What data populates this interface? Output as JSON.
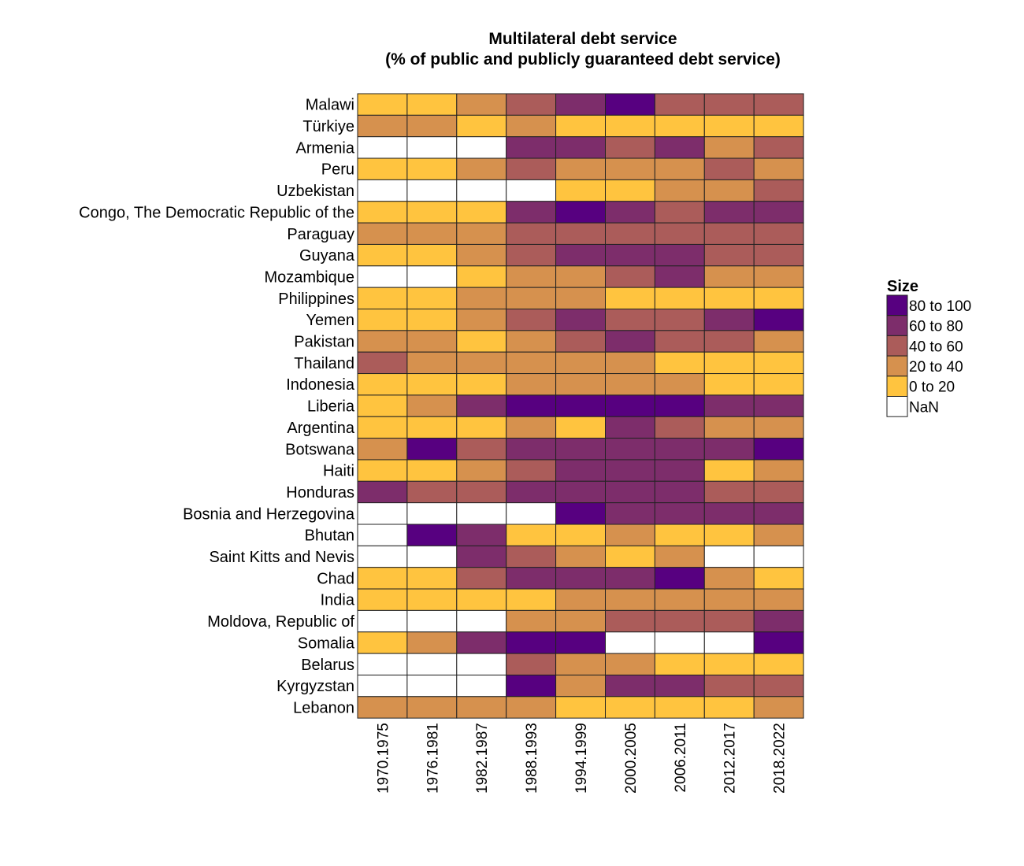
{
  "chart_data": {
    "type": "heatmap",
    "title": "Multilateral debt service",
    "subtitle": "(% of public and publicly guaranteed debt service)",
    "rows": [
      "Malawi",
      "Türkiye",
      "Armenia",
      "Peru",
      "Uzbekistan",
      "Congo, The Democratic Republic of the",
      "Paraguay",
      "Guyana",
      "Mozambique",
      "Philippines",
      "Yemen",
      "Pakistan",
      "Thailand",
      "Indonesia",
      "Liberia",
      "Argentina",
      "Botswana",
      "Haiti",
      "Honduras",
      "Bosnia and Herzegovina",
      "Bhutan",
      "Saint Kitts and Nevis",
      "Chad",
      "India",
      "Moldova, Republic of",
      "Somalia",
      "Belarus",
      "Kyrgyzstan",
      "Lebanon"
    ],
    "columns": [
      "1970.1975",
      "1976.1981",
      "1982.1987",
      "1988.1993",
      "1994.1999",
      "2000.2005",
      "2006.2011",
      "2012.2017",
      "2018.2022"
    ],
    "values_category": [
      [
        0,
        0,
        1,
        2,
        3,
        4,
        2,
        2,
        2
      ],
      [
        1,
        1,
        0,
        1,
        0,
        0,
        0,
        0,
        0
      ],
      [
        null,
        null,
        null,
        3,
        3,
        2,
        3,
        1,
        2
      ],
      [
        0,
        0,
        1,
        2,
        1,
        1,
        1,
        2,
        1
      ],
      [
        null,
        null,
        null,
        null,
        0,
        0,
        1,
        1,
        2
      ],
      [
        0,
        0,
        0,
        3,
        4,
        3,
        2,
        3,
        3
      ],
      [
        1,
        1,
        1,
        2,
        2,
        2,
        2,
        2,
        2
      ],
      [
        0,
        0,
        1,
        2,
        3,
        3,
        3,
        2,
        2
      ],
      [
        null,
        null,
        0,
        1,
        1,
        2,
        3,
        1,
        1
      ],
      [
        0,
        0,
        1,
        1,
        1,
        0,
        0,
        0,
        0
      ],
      [
        0,
        0,
        1,
        2,
        3,
        2,
        2,
        3,
        4
      ],
      [
        1,
        1,
        0,
        1,
        2,
        3,
        2,
        2,
        1
      ],
      [
        2,
        1,
        1,
        1,
        1,
        1,
        0,
        0,
        0
      ],
      [
        0,
        0,
        0,
        1,
        1,
        1,
        1,
        0,
        0
      ],
      [
        0,
        1,
        3,
        4,
        4,
        4,
        4,
        3,
        3
      ],
      [
        0,
        0,
        0,
        1,
        0,
        3,
        2,
        1,
        1
      ],
      [
        1,
        4,
        2,
        3,
        3,
        3,
        3,
        3,
        4
      ],
      [
        0,
        0,
        1,
        2,
        3,
        3,
        3,
        0,
        1
      ],
      [
        3,
        2,
        2,
        3,
        3,
        3,
        3,
        2,
        2
      ],
      [
        null,
        null,
        null,
        null,
        4,
        3,
        3,
        3,
        3
      ],
      [
        null,
        4,
        3,
        0,
        0,
        1,
        0,
        0,
        1
      ],
      [
        null,
        null,
        3,
        2,
        1,
        0,
        1,
        null,
        null
      ],
      [
        0,
        0,
        2,
        3,
        3,
        3,
        4,
        1,
        0
      ],
      [
        0,
        0,
        0,
        0,
        1,
        1,
        1,
        1,
        1
      ],
      [
        null,
        null,
        null,
        1,
        1,
        2,
        2,
        2,
        3
      ],
      [
        0,
        1,
        3,
        4,
        4,
        null,
        null,
        null,
        4
      ],
      [
        null,
        null,
        null,
        2,
        1,
        1,
        0,
        0,
        0
      ],
      [
        null,
        null,
        null,
        4,
        1,
        3,
        3,
        2,
        2
      ],
      [
        1,
        1,
        1,
        1,
        0,
        0,
        0,
        0,
        1
      ]
    ],
    "legend": {
      "title": "Size",
      "position": "right",
      "items": [
        {
          "label": "80 to 100",
          "color": "#570080"
        },
        {
          "label": "60 to 80",
          "color": "#7d2d6b"
        },
        {
          "label": "40 to 60",
          "color": "#ab5c5a"
        },
        {
          "label": "20 to 40",
          "color": "#d6914e"
        },
        {
          "label": "0 to 20",
          "color": "#ffc43f"
        },
        {
          "label": "NaN",
          "color": "#ffffff"
        }
      ]
    },
    "category_colors": [
      "#ffc43f",
      "#d6914e",
      "#ab5c5a",
      "#7d2d6b",
      "#570080"
    ],
    "nan_color": "#ffffff"
  }
}
